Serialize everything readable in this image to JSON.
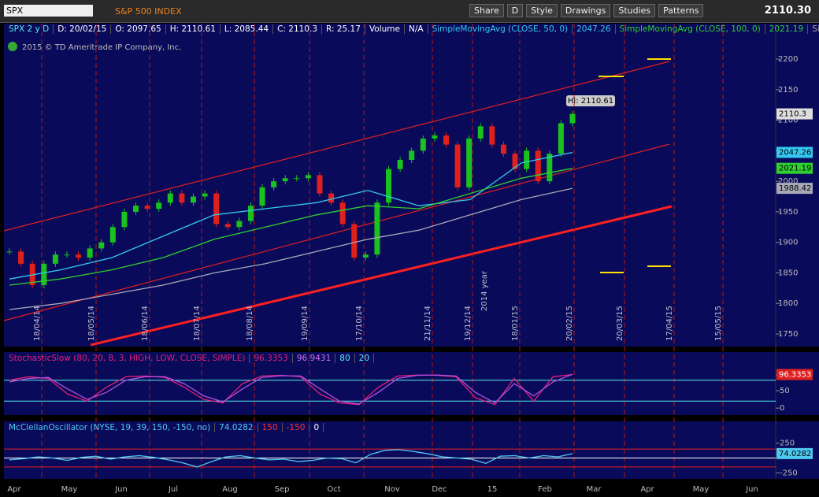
{
  "toolbar": {
    "symbol": "SPX",
    "description": "S&P 500 INDEX",
    "buttons": [
      "Share",
      "D",
      "Style",
      "Drawings",
      "Studies",
      "Patterns"
    ],
    "last": "2110.30"
  },
  "header": {
    "items": [
      "SPX 2 y D",
      "D: 20/02/15",
      "O: 2097.65",
      "H: 2110.61",
      "L: 2085.44",
      "C: 2110.3",
      "R: 25.17",
      "Volume",
      "N/A"
    ],
    "sma50_name": "SimpleMovingAvg (CLOSE, 50, 0)",
    "sma100_name": "SimpleMovingAvg (CLOSE, 100, 0)",
    "more": "Simple..."
  },
  "copyright": "2015 © TD Ameritrade IP Company, Inc.",
  "hi_label": "Hi: 2110.61",
  "price_chart": {
    "type": "candlestick",
    "ylim": [
      1729.4,
      2238.7
    ],
    "yticks": [
      2200,
      2150,
      2100,
      2050,
      2000,
      1950,
      1900,
      1850,
      1800,
      1750
    ],
    "closes": [
      1885,
      1865,
      1830,
      1865,
      1880,
      1880,
      1875,
      1890,
      1900,
      1925,
      1950,
      1960,
      1955,
      1965,
      1980,
      1965,
      1975,
      1980,
      1930,
      1925,
      1935,
      1960,
      1990,
      2000,
      2005,
      2005,
      2010,
      1980,
      1965,
      1930,
      1875,
      1880,
      1965,
      2020,
      2035,
      2050,
      2070,
      2075,
      2060,
      1990,
      2070,
      2090,
      2060,
      2045,
      2020,
      2050,
      2000,
      2045,
      2095,
      2110.3
    ],
    "up_color": "#19c21e",
    "down_color": "#e0201c",
    "series": [
      {
        "name": "SMA50",
        "color": "#35c8f0",
        "values": [
          1840,
          1855,
          1875,
          1910,
          1945,
          1955,
          1965,
          1985,
          1960,
          1970,
          2030,
          2047.26
        ]
      },
      {
        "name": "SMA100",
        "color": "#2fd02f",
        "values": [
          1830,
          1840,
          1855,
          1875,
          1905,
          1925,
          1945,
          1960,
          1955,
          1980,
          2005,
          2021.19
        ]
      },
      {
        "name": "SMA200",
        "color": "#a8a8b8",
        "values": [
          1790,
          1800,
          1815,
          1830,
          1850,
          1865,
          1885,
          1905,
          1920,
          1945,
          1970,
          1988.42
        ]
      }
    ],
    "date_markers": [
      "18/04/14",
      "18/05/14",
      "18/06/14",
      "18/07/14",
      "18/08/14",
      "19/09/14",
      "17/10/14",
      "21/11/14",
      "19/12/14",
      "2014 year",
      "18/01/15",
      "20/02/15",
      "20/03/15",
      "17/04/15",
      "15/05/15"
    ]
  },
  "stochastic": {
    "type": "line",
    "title": "StochasticSlow (80, 20, 8, 3, HIGH, LOW, CLOSE, SIMPLE)",
    "ylim": [
      -20,
      120
    ],
    "yticks": [
      95,
      50,
      0
    ],
    "levels": [
      80,
      20
    ],
    "series": [
      {
        "name": "SlowK",
        "color": "#e0207a",
        "values": [
          80,
          90,
          85,
          40,
          20,
          60,
          90,
          92,
          88,
          60,
          25,
          15,
          70,
          92,
          94,
          90,
          40,
          15,
          10,
          60,
          92,
          95,
          94,
          90,
          30,
          10,
          85,
          20,
          90,
          96.3353
        ]
      },
      {
        "name": "SlowD",
        "color": "#b050e0",
        "values": [
          75,
          85,
          88,
          55,
          25,
          45,
          80,
          90,
          90,
          70,
          35,
          18,
          55,
          88,
          93,
          92,
          55,
          20,
          12,
          45,
          85,
          94,
          95,
          92,
          45,
          15,
          70,
          35,
          75,
          96.9431
        ]
      }
    ]
  },
  "mcclellan": {
    "type": "line",
    "title": "McClellanOscillator (NYSE, 19, 39, 150, -150, no)",
    "ylim": [
      -350,
      350
    ],
    "yticks": [
      250,
      -250
    ],
    "levels": [
      150,
      -150,
      0
    ],
    "series": [
      {
        "name": "McClellan",
        "color": "#4ec8f0",
        "values": [
          -30,
          -10,
          20,
          0,
          -40,
          10,
          30,
          -20,
          20,
          40,
          10,
          -30,
          -80,
          -150,
          -60,
          20,
          40,
          0,
          -30,
          -20,
          -60,
          -40,
          0,
          -10,
          -80,
          60,
          130,
          140,
          110,
          70,
          20,
          0,
          -20,
          -90,
          30,
          40,
          0,
          40,
          20,
          74.0282
        ]
      }
    ]
  },
  "months": [
    "Apr",
    "May",
    "Jun",
    "Jul",
    "Aug",
    "Sep",
    "Oct",
    "Nov",
    "Dec",
    "15",
    "Feb",
    "Mar",
    "Apr",
    "May",
    "Jun"
  ]
}
